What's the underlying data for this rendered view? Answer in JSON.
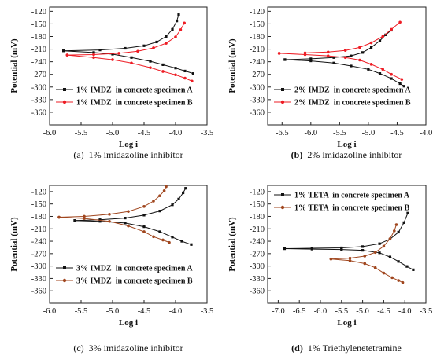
{
  "chart_data": [
    {
      "type": "line",
      "caption_label": "(a)",
      "caption_text": "1% imidazoline inhibitor",
      "xlabel": "Log i",
      "ylabel": "Potential (mV)",
      "xlim": [
        -6.0,
        -3.5
      ],
      "ylim": [
        -390,
        -110
      ],
      "xticks": [
        -6.0,
        -5.5,
        -5.0,
        -4.5,
        -4.0,
        -3.5
      ],
      "xtick_labels": [
        "-6.0",
        "-5.5",
        "-5.0",
        "-4.5",
        "-4.0",
        "-3.5"
      ],
      "yticks": [
        -120,
        -150,
        -180,
        -210,
        -240,
        -270,
        -300,
        -330,
        -360
      ],
      "legend_position": "bottom-left",
      "series": [
        {
          "name": "1% IMDZ  in concrete specimen A",
          "color": "#111111",
          "marker": "square",
          "anodic": [
            [
              -5.78,
              -214
            ],
            [
              -5.2,
              -212
            ],
            [
              -4.8,
              -208
            ],
            [
              -4.5,
              -202
            ],
            [
              -4.3,
              -193
            ],
            [
              -4.15,
              -180
            ],
            [
              -4.05,
              -163
            ],
            [
              -3.98,
              -143
            ],
            [
              -3.95,
              -128
            ]
          ],
          "cathodic": [
            [
              -5.78,
              -214
            ],
            [
              -5.3,
              -218
            ],
            [
              -5.0,
              -222
            ],
            [
              -4.7,
              -230
            ],
            [
              -4.4,
              -239
            ],
            [
              -4.2,
              -247
            ],
            [
              -4.0,
              -255
            ],
            [
              -3.85,
              -262
            ],
            [
              -3.72,
              -268
            ]
          ]
        },
        {
          "name": "1% IMDZ  in concrete specimen B",
          "color": "#ee1c24",
          "marker": "circle",
          "anodic": [
            [
              -5.72,
              -224
            ],
            [
              -5.3,
              -223
            ],
            [
              -4.9,
              -220
            ],
            [
              -4.6,
              -215
            ],
            [
              -4.35,
              -207
            ],
            [
              -4.15,
              -196
            ],
            [
              -4.0,
              -181
            ],
            [
              -3.92,
              -164
            ],
            [
              -3.86,
              -148
            ]
          ],
          "cathodic": [
            [
              -5.72,
              -224
            ],
            [
              -5.3,
              -230
            ],
            [
              -5.0,
              -235
            ],
            [
              -4.7,
              -243
            ],
            [
              -4.4,
              -254
            ],
            [
              -4.2,
              -263
            ],
            [
              -4.0,
              -271
            ],
            [
              -3.85,
              -279
            ],
            [
              -3.74,
              -286
            ]
          ]
        }
      ]
    },
    {
      "type": "line",
      "caption_label": "(b)",
      "caption_text": "2% imidazoline inhibitor",
      "xlabel": "Log i",
      "ylabel": "Potential (mV)",
      "xlim": [
        -6.75,
        -4.0
      ],
      "ylim": [
        -390,
        -110
      ],
      "xticks": [
        -6.5,
        -6.0,
        -5.5,
        -5.0,
        -4.5,
        -4.0
      ],
      "xtick_labels": [
        "-6.5",
        "-6.0",
        "-5.5",
        "-5.0",
        "-4.5",
        "-4.0"
      ],
      "yticks": [
        -120,
        -150,
        -180,
        -210,
        -240,
        -270,
        -300,
        -330,
        -360
      ],
      "legend_position": "bottom-left",
      "series": [
        {
          "name": "2% IMDZ  in concrete specimen A",
          "color": "#111111",
          "marker": "square",
          "anodic": [
            [
              -6.45,
              -235
            ],
            [
              -6.0,
              -233
            ],
            [
              -5.6,
              -230
            ],
            [
              -5.3,
              -226
            ],
            [
              -5.1,
              -218
            ],
            [
              -4.95,
              -206
            ],
            [
              -4.8,
              -190
            ],
            [
              -4.7,
              -176
            ],
            [
              -4.6,
              -165
            ]
          ],
          "cathodic": [
            [
              -6.45,
              -235
            ],
            [
              -6.0,
              -238
            ],
            [
              -5.6,
              -243
            ],
            [
              -5.3,
              -250
            ],
            [
              -5.0,
              -258
            ],
            [
              -4.8,
              -268
            ],
            [
              -4.6,
              -280
            ],
            [
              -4.45,
              -292
            ],
            [
              -4.38,
              -298
            ]
          ]
        },
        {
          "name": "2% IMDZ  in concrete specimen B",
          "color": "#ee1c24",
          "marker": "circle",
          "anodic": [
            [
              -6.55,
              -220
            ],
            [
              -6.1,
              -219
            ],
            [
              -5.7,
              -217
            ],
            [
              -5.4,
              -213
            ],
            [
              -5.15,
              -206
            ],
            [
              -4.95,
              -195
            ],
            [
              -4.75,
              -180
            ],
            [
              -4.6,
              -163
            ],
            [
              -4.45,
              -146
            ]
          ],
          "cathodic": [
            [
              -6.55,
              -220
            ],
            [
              -6.1,
              -223
            ],
            [
              -5.7,
              -226
            ],
            [
              -5.4,
              -230
            ],
            [
              -5.15,
              -236
            ],
            [
              -4.95,
              -246
            ],
            [
              -4.75,
              -258
            ],
            [
              -4.6,
              -270
            ],
            [
              -4.42,
              -282
            ]
          ]
        }
      ]
    },
    {
      "type": "line",
      "caption_label": "(c)",
      "caption_text": "3% imidazoline inhibitor",
      "xlabel": "Log i",
      "ylabel": "Potential (mV)",
      "xlim": [
        -6.0,
        -3.5
      ],
      "ylim": [
        -390,
        -105
      ],
      "xticks": [
        -6.0,
        -5.5,
        -5.0,
        -4.5,
        -4.0,
        -3.5
      ],
      "xtick_labels": [
        "-6.0",
        "-5.5",
        "-5.0",
        "-4.5",
        "-4.0",
        "-3.5"
      ],
      "yticks": [
        -120,
        -150,
        -180,
        -210,
        -240,
        -270,
        -300,
        -330,
        -360
      ],
      "legend_position": "bottom-left",
      "series": [
        {
          "name": "3% IMDZ  in concrete specimen A",
          "color": "#111111",
          "marker": "square",
          "anodic": [
            [
              -5.6,
              -190
            ],
            [
              -5.2,
              -188
            ],
            [
              -4.8,
              -184
            ],
            [
              -4.5,
              -177
            ],
            [
              -4.25,
              -167
            ],
            [
              -4.05,
              -152
            ],
            [
              -3.95,
              -138
            ],
            [
              -3.88,
              -123
            ],
            [
              -3.84,
              -112
            ]
          ],
          "cathodic": [
            [
              -5.6,
              -190
            ],
            [
              -5.2,
              -192
            ],
            [
              -4.8,
              -196
            ],
            [
              -4.5,
              -205
            ],
            [
              -4.25,
              -217
            ],
            [
              -4.05,
              -230
            ],
            [
              -3.9,
              -240
            ],
            [
              -3.75,
              -248
            ]
          ]
        },
        {
          "name": "3% IMDZ  in concrete specimen B",
          "color": "#a0461e",
          "marker": "circle",
          "anodic": [
            [
              -5.85,
              -182
            ],
            [
              -5.45,
              -180
            ],
            [
              -5.05,
              -175
            ],
            [
              -4.75,
              -168
            ],
            [
              -4.5,
              -156
            ],
            [
              -4.35,
              -143
            ],
            [
              -4.25,
              -130
            ],
            [
              -4.18,
              -118
            ],
            [
              -4.15,
              -108
            ]
          ],
          "cathodic": [
            [
              -5.85,
              -182
            ],
            [
              -5.45,
              -185
            ],
            [
              -5.05,
              -192
            ],
            [
              -4.75,
              -203
            ],
            [
              -4.5,
              -217
            ],
            [
              -4.35,
              -229
            ],
            [
              -4.2,
              -237
            ],
            [
              -4.1,
              -243
            ]
          ]
        }
      ]
    },
    {
      "type": "line",
      "caption_label": "(d)",
      "caption_text": "1% Triethylenetetramine",
      "xlabel": "Log i",
      "ylabel": "Potential (mV)",
      "xlim": [
        -7.25,
        -3.5
      ],
      "ylim": [
        -390,
        -105
      ],
      "xticks": [
        -7.0,
        -6.5,
        -6.0,
        -5.5,
        -5.0,
        -4.5,
        -4.0,
        -3.5
      ],
      "xtick_labels": [
        "-7.0",
        "-6.5",
        "-6.0",
        "-5.5",
        "-5.0",
        "-4.5",
        "-4.0",
        "-3.5"
      ],
      "yticks": [
        -120,
        -150,
        -180,
        -210,
        -240,
        -270,
        -300,
        -330,
        -360
      ],
      "legend_position": "top-left",
      "series": [
        {
          "name": "1% TETA  in concrete specimen A",
          "color": "#111111",
          "marker": "square",
          "anodic": [
            [
              -6.85,
              -258
            ],
            [
              -6.2,
              -257
            ],
            [
              -5.5,
              -256
            ],
            [
              -5.0,
              -253
            ],
            [
              -4.6,
              -246
            ],
            [
              -4.35,
              -235
            ],
            [
              -4.15,
              -218
            ],
            [
              -4.02,
              -195
            ],
            [
              -3.93,
              -172
            ]
          ],
          "cathodic": [
            [
              -6.85,
              -258
            ],
            [
              -6.2,
              -259
            ],
            [
              -5.5,
              -260
            ],
            [
              -5.0,
              -262
            ],
            [
              -4.6,
              -268
            ],
            [
              -4.35,
              -278
            ],
            [
              -4.15,
              -289
            ],
            [
              -3.95,
              -301
            ],
            [
              -3.8,
              -309
            ]
          ]
        },
        {
          "name": "1% TETA  in concrete specimen B",
          "color": "#a0461e",
          "marker": "circle",
          "anodic": [
            [
              -5.75,
              -283
            ],
            [
              -5.3,
              -281
            ],
            [
              -4.95,
              -276
            ],
            [
              -4.7,
              -267
            ],
            [
              -4.5,
              -252
            ],
            [
              -4.35,
              -234
            ],
            [
              -4.25,
              -215
            ],
            [
              -4.2,
              -200
            ]
          ],
          "cathodic": [
            [
              -5.75,
              -283
            ],
            [
              -5.3,
              -287
            ],
            [
              -4.95,
              -294
            ],
            [
              -4.7,
              -304
            ],
            [
              -4.5,
              -317
            ],
            [
              -4.3,
              -328
            ],
            [
              -4.15,
              -335
            ],
            [
              -4.05,
              -340
            ]
          ]
        }
      ]
    }
  ]
}
